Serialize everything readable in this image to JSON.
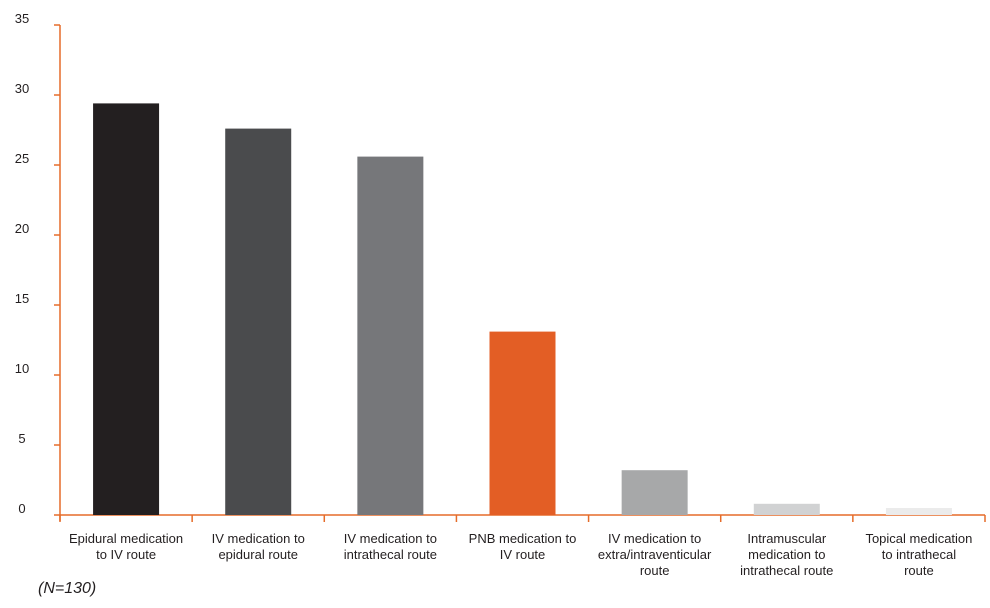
{
  "footnote": "(N=130)",
  "chart_data": {
    "type": "bar",
    "categories": [
      [
        "Epidural medication",
        "to IV route"
      ],
      [
        "IV medication to",
        "epidural route"
      ],
      [
        "IV medication to",
        "intrathecal route"
      ],
      [
        "PNB medication to",
        "IV route"
      ],
      [
        "IV medication to",
        "extra/intraventicular",
        "route"
      ],
      [
        "Intramuscular",
        "medication to",
        "intrathecal route"
      ],
      [
        "Topical medication",
        "to intrathecal",
        "route"
      ]
    ],
    "values": [
      29.4,
      27.6,
      25.6,
      13.1,
      3.2,
      0.8,
      0.5
    ],
    "colors": [
      "#231f20",
      "#4a4b4d",
      "#76777a",
      "#e35e25",
      "#a7a8a9",
      "#d1d2d3",
      "#ebebeb"
    ],
    "axis_color": "#e56c2a",
    "ylim": [
      0,
      35
    ],
    "yticks": [
      0,
      5,
      10,
      15,
      20,
      25,
      30,
      35
    ],
    "title": "",
    "xlabel": "",
    "ylabel": "",
    "grid": false
  }
}
